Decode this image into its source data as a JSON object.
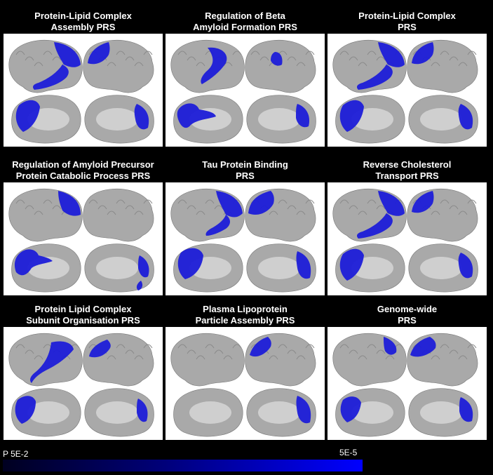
{
  "panels": [
    {
      "title_line1": "Protein-Lipid Complex",
      "title_line2": "Assembly PRS"
    },
    {
      "title_line1": "Regulation of Beta",
      "title_line2": "Amyloid Formation PRS"
    },
    {
      "title_line1": "Protein-Lipid Complex",
      "title_line2": "PRS"
    },
    {
      "title_line1": "Regulation of Amyloid Precursor",
      "title_line2": "Protein Catabolic Process PRS"
    },
    {
      "title_line1": "Tau Protein Binding",
      "title_line2": "PRS"
    },
    {
      "title_line1": "Reverse Cholesterol",
      "title_line2": "Transport PRS"
    },
    {
      "title_line1": "Protein Lipid Complex",
      "title_line2": "Subunit Organisation PRS"
    },
    {
      "title_line1": "Plasma Lipoprotein",
      "title_line2": "Particle Assembly PRS"
    },
    {
      "title_line1": "Genome-wide",
      "title_line2": "PRS"
    }
  ],
  "legend": {
    "left_label": "P 5E-2",
    "right_label": "5E-5"
  },
  "colors": {
    "background": "#000000",
    "cortex": "#a9a9a9",
    "medial": "#cfcfcf",
    "significant": "#1c1cd8"
  }
}
